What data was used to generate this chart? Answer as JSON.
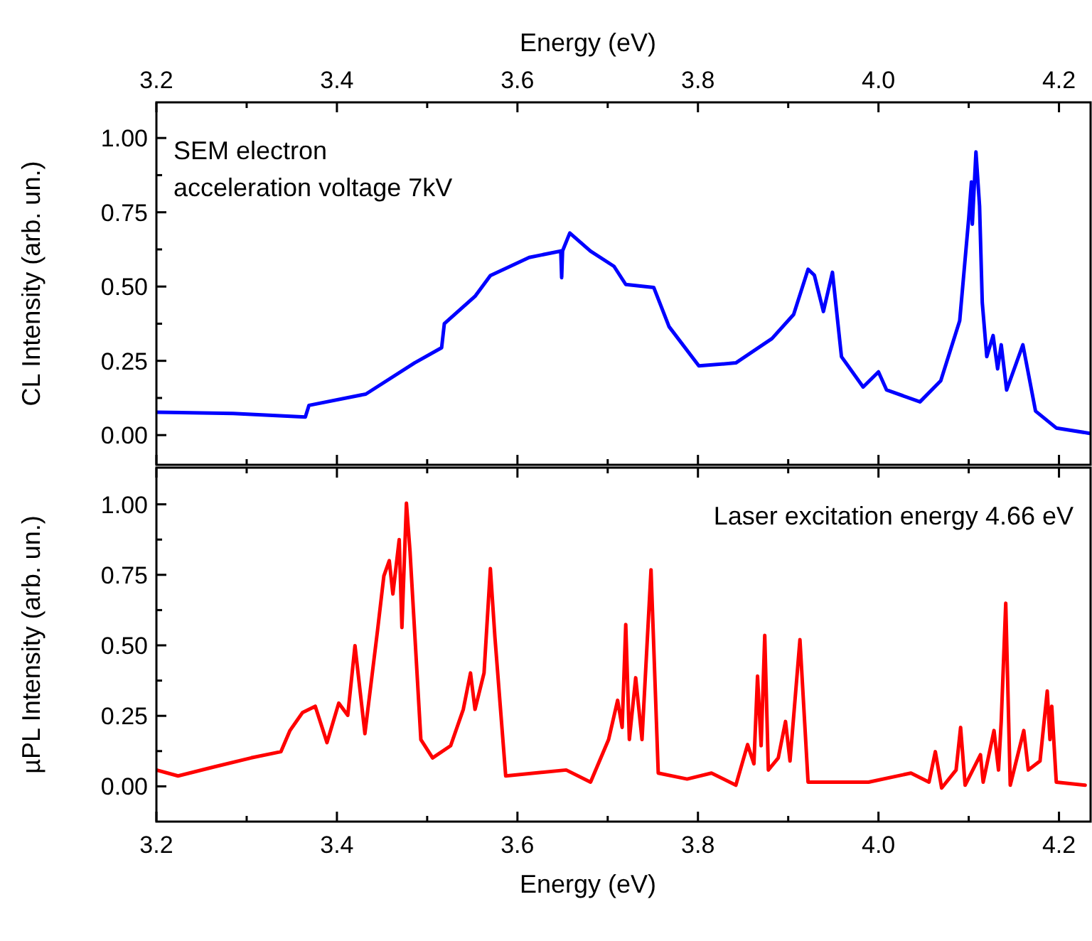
{
  "chart_data": [
    {
      "type": "line",
      "xlabel": "Energy (eV)",
      "ylabel": "CL Intensity (arb. un.)",
      "xlim": [
        3.2,
        4.235
      ],
      "xticks": [
        3.2,
        {
          "value": 3.3,
          "label": null
        },
        3.4,
        {
          "value": 3.5,
          "label": null
        },
        3.6,
        {
          "value": 3.7,
          "label": null
        },
        3.8,
        {
          "value": 3.9,
          "label": null
        },
        {
          "value": 4.0,
          "label": "4.0"
        },
        {
          "value": 4.1,
          "label": null
        },
        4.2
      ],
      "ylim": [
        -0.1,
        1.12
      ],
      "yticks": [
        {
          "value": 0,
          "label": "0.00"
        },
        {
          "value": 0.125,
          "label": null
        },
        {
          "value": 0.25,
          "label": "0.25"
        },
        {
          "value": 0.375,
          "label": null
        },
        {
          "value": 0.5,
          "label": "0.50"
        },
        {
          "value": 0.625,
          "label": null
        },
        {
          "value": 0.75,
          "label": "0.75"
        },
        {
          "value": 0.875,
          "label": null
        },
        {
          "value": 1,
          "label": "1.00"
        }
      ],
      "annotations": [
        "SEM electron\nacceleration voltage 7kV"
      ],
      "series": [
        {
          "color": "#0000ff",
          "x": [
            3.2,
            3.285,
            3.365,
            3.369,
            3.432,
            3.486,
            3.516,
            3.519,
            3.553,
            3.57,
            3.613,
            3.647,
            3.648,
            3.649,
            3.65,
            3.658,
            3.681,
            3.707,
            3.72,
            3.751,
            3.768,
            3.801,
            3.842,
            3.882,
            3.906,
            3.922,
            3.929,
            3.939,
            3.949,
            3.959,
            3.983,
            4.0,
            4.009,
            4.046,
            4.069,
            4.09,
            4.1,
            4.103,
            4.104,
            4.108,
            4.112,
            4.115,
            4.12,
            4.127,
            4.132,
            4.136,
            4.142,
            4.16,
            4.174,
            4.197,
            4.234
          ],
          "values": [
            0.077,
            0.073,
            0.061,
            0.1,
            0.138,
            0.243,
            0.294,
            0.375,
            0.467,
            0.537,
            0.598,
            0.619,
            0.62,
            0.53,
            0.62,
            0.68,
            0.619,
            0.568,
            0.507,
            0.497,
            0.365,
            0.233,
            0.243,
            0.325,
            0.406,
            0.558,
            0.538,
            0.416,
            0.548,
            0.264,
            0.162,
            0.213,
            0.152,
            0.112,
            0.183,
            0.385,
            0.73,
            0.852,
            0.71,
            0.953,
            0.771,
            0.446,
            0.264,
            0.335,
            0.223,
            0.304,
            0.152,
            0.304,
            0.081,
            0.024,
            0.006
          ]
        }
      ]
    },
    {
      "type": "line",
      "xlabel": "Energy (eV)",
      "ylabel": "µPL Intensity (arb. un.)",
      "xlim": [
        3.2,
        4.235
      ],
      "xticks": [
        3.2,
        {
          "value": 3.3,
          "label": null
        },
        3.4,
        {
          "value": 3.5,
          "label": null
        },
        3.6,
        {
          "value": 3.7,
          "label": null
        },
        3.8,
        {
          "value": 3.9,
          "label": null
        },
        {
          "value": 4.0,
          "label": "4.0"
        },
        {
          "value": 4.1,
          "label": null
        },
        4.2
      ],
      "ylim": [
        -0.125,
        1.13
      ],
      "yticks": [
        {
          "value": 0,
          "label": "0.00"
        },
        {
          "value": 0.125,
          "label": null
        },
        {
          "value": 0.25,
          "label": "0.25"
        },
        {
          "value": 0.375,
          "label": null
        },
        {
          "value": 0.5,
          "label": "0.50"
        },
        {
          "value": 0.625,
          "label": null
        },
        {
          "value": 0.75,
          "label": "0.75"
        },
        {
          "value": 0.875,
          "label": null
        },
        {
          "value": 1,
          "label": "1.00"
        }
      ],
      "annotations": [
        "Laser excitation energy 4.66 eV"
      ],
      "series": [
        {
          "color": "#ff0000",
          "x": [
            3.2,
            3.224,
            3.264,
            3.305,
            3.338,
            3.348,
            3.362,
            3.376,
            3.389,
            3.402,
            3.412,
            3.42,
            3.431,
            3.445,
            3.452,
            3.458,
            3.462,
            3.469,
            3.472,
            3.477,
            3.481,
            3.493,
            3.506,
            3.526,
            3.54,
            3.548,
            3.553,
            3.563,
            3.57,
            3.575,
            3.587,
            3.654,
            3.681,
            3.701,
            3.711,
            3.716,
            3.72,
            3.724,
            3.731,
            3.738,
            3.748,
            3.756,
            3.788,
            3.815,
            3.842,
            3.855,
            3.862,
            3.866,
            3.87,
            3.874,
            3.878,
            3.889,
            3.897,
            3.902,
            3.913,
            3.922,
            3.989,
            4.036,
            4.056,
            4.063,
            4.07,
            4.086,
            4.091,
            4.096,
            4.113,
            4.116,
            4.128,
            4.133,
            4.136,
            4.141,
            4.146,
            4.161,
            4.166,
            4.179,
            4.187,
            4.19,
            4.192,
            4.197,
            4.229
          ],
          "values": [
            0.058,
            0.037,
            0.069,
            0.101,
            0.123,
            0.198,
            0.262,
            0.284,
            0.155,
            0.295,
            0.252,
            0.499,
            0.187,
            0.553,
            0.746,
            0.8,
            0.682,
            0.875,
            0.563,
            1.004,
            0.832,
            0.166,
            0.101,
            0.144,
            0.273,
            0.402,
            0.273,
            0.402,
            0.772,
            0.531,
            0.037,
            0.058,
            0.015,
            0.166,
            0.305,
            0.209,
            0.574,
            0.166,
            0.385,
            0.166,
            0.768,
            0.047,
            0.026,
            0.047,
            0.004,
            0.148,
            0.08,
            0.391,
            0.144,
            0.535,
            0.058,
            0.101,
            0.23,
            0.09,
            0.52,
            0.015,
            0.015,
            0.047,
            0.015,
            0.123,
            -0.006,
            0.058,
            0.209,
            0.004,
            0.112,
            0.015,
            0.198,
            0.058,
            0.23,
            0.649,
            0.004,
            0.198,
            0.058,
            0.09,
            0.338,
            0.166,
            0.284,
            0.015,
            0.004
          ]
        }
      ]
    }
  ]
}
